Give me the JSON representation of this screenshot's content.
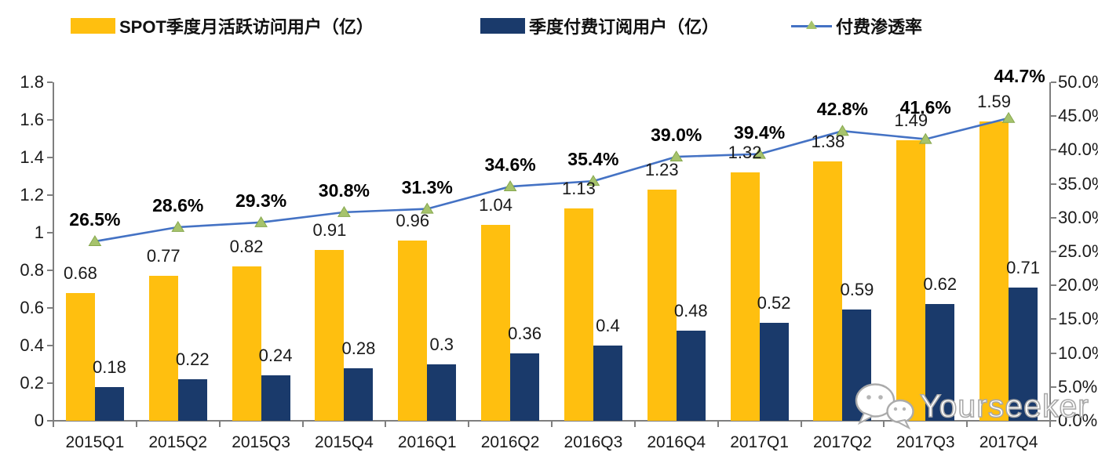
{
  "legend": {
    "items": [
      {
        "label": "SPOT季度月活跃访问用户（亿）",
        "swatch": "bar",
        "color": "#FFBF0F"
      },
      {
        "label": "季度付费订阅用户（亿）",
        "swatch": "bar",
        "color": "#1A3A6B"
      },
      {
        "label": "付费渗透率",
        "swatch": "line-triangle",
        "color": "#4472C4",
        "marker_color": "#A6C36C"
      }
    ]
  },
  "watermark": {
    "text": "Yourseeker",
    "icon": "wechat-icon"
  },
  "chart_data": {
    "type": "bar",
    "subtype": "combo-bar-line",
    "categories": [
      "2015Q1",
      "2015Q2",
      "2015Q3",
      "2015Q4",
      "2016Q1",
      "2016Q2",
      "2016Q3",
      "2016Q4",
      "2017Q1",
      "2017Q2",
      "2017Q3",
      "2017Q4"
    ],
    "series": [
      {
        "name": "SPOT季度月活跃访问用户（亿）",
        "type": "bar",
        "axis": "left",
        "color": "#FFBF0F",
        "values": [
          0.68,
          0.77,
          0.82,
          0.91,
          0.96,
          1.04,
          1.13,
          1.23,
          1.32,
          1.38,
          1.49,
          1.59
        ],
        "labels": [
          "0.68",
          "0.77",
          "0.82",
          "0.91",
          "0.96",
          "1.04",
          "1.13",
          "1.23",
          "1.32",
          "1.38",
          "1.49",
          "1.59"
        ]
      },
      {
        "name": "季度付费订阅用户（亿）",
        "type": "bar",
        "axis": "left",
        "color": "#1A3A6B",
        "values": [
          0.18,
          0.22,
          0.24,
          0.28,
          0.3,
          0.36,
          0.4,
          0.48,
          0.52,
          0.59,
          0.62,
          0.71
        ],
        "labels": [
          "0.18",
          "0.22",
          "0.24",
          "0.28",
          "0.3",
          "0.36",
          "0.4",
          "0.48",
          "0.52",
          "0.59",
          "0.62",
          "0.71"
        ]
      },
      {
        "name": "付费渗透率",
        "type": "line",
        "axis": "right",
        "color": "#4472C4",
        "marker": "triangle",
        "marker_color": "#A6C36C",
        "values": [
          26.5,
          28.6,
          29.3,
          30.8,
          31.3,
          34.6,
          35.4,
          39.0,
          39.4,
          42.8,
          41.6,
          44.7
        ],
        "labels": [
          "26.5%",
          "28.6%",
          "29.3%",
          "30.8%",
          "31.3%",
          "34.6%",
          "35.4%",
          "39.0%",
          "39.4%",
          "42.8%",
          "41.6%",
          "44.7%"
        ]
      }
    ],
    "left_axis": {
      "min": 0,
      "max": 1.8,
      "step": 0.2,
      "ticks": [
        "1.8",
        "1.6",
        "1.4",
        "1.2",
        "1",
        "0.8",
        "0.6",
        "0.4",
        "0.2",
        "0"
      ]
    },
    "right_axis": {
      "min": 0,
      "max": 50,
      "step": 5,
      "ticks": [
        "50.0%",
        "45.0%",
        "40.0%",
        "35.0%",
        "30.0%",
        "25.0%",
        "20.0%",
        "15.0%",
        "10.0%",
        "5.0%",
        "0.0%"
      ]
    },
    "grid": "off",
    "legend_position": "top",
    "title": ""
  }
}
